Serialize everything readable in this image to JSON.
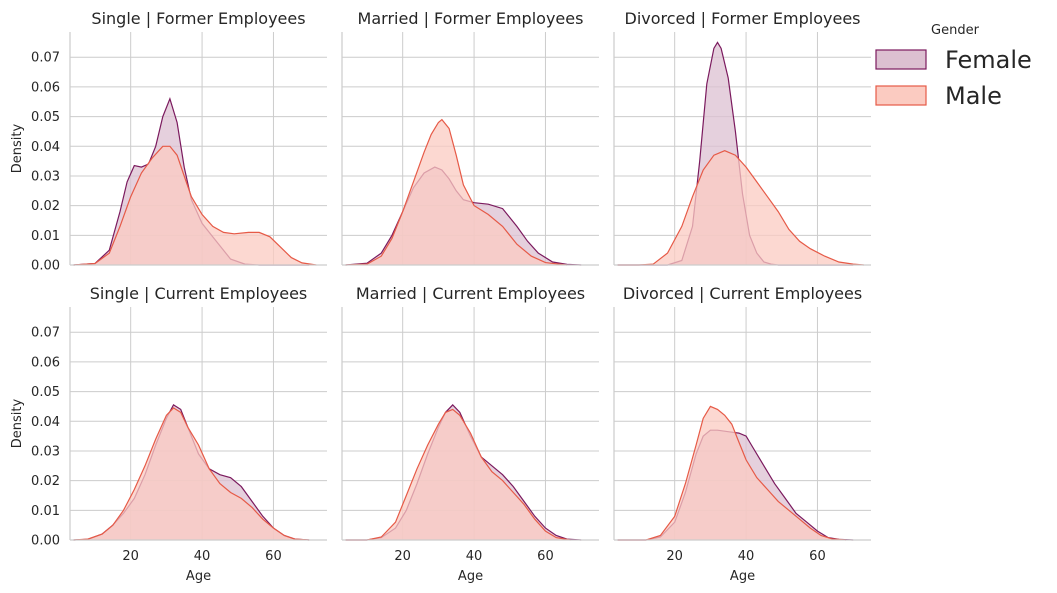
{
  "chart_data": {
    "type": "area",
    "kind": "kde-density facet grid",
    "xlabel": "Age",
    "ylabel": "Density",
    "xlim": [
      3,
      75
    ],
    "ylim": [
      0,
      0.0785
    ],
    "xticks": [
      20,
      40,
      60
    ],
    "yticks": [
      0.0,
      0.01,
      0.02,
      0.03,
      0.04,
      0.05,
      0.06,
      0.07
    ],
    "ytick_labels": [
      "0.00",
      "0.01",
      "0.02",
      "0.03",
      "0.04",
      "0.05",
      "0.06",
      "0.07"
    ],
    "grid": true,
    "legend": {
      "title": "Gender",
      "position": "top-right outside",
      "entries": [
        {
          "name": "Female",
          "fill": "#dcc0d1",
          "stroke": "#7b1a5e"
        },
        {
          "name": "Male",
          "fill": "#fbcbc1",
          "stroke": "#e65a47"
        }
      ]
    },
    "panels": [
      {
        "title": "Single | Former Employees",
        "series": [
          {
            "name": "Female",
            "x": [
              4,
              10,
              14,
              17,
              19,
              21,
              23,
              25,
              27,
              29,
              31,
              33,
              35,
              37,
              40,
              44,
              48,
              52,
              56,
              60,
              64,
              70
            ],
            "y": [
              0,
              0.0005,
              0.005,
              0.018,
              0.028,
              0.0335,
              0.033,
              0.034,
              0.04,
              0.05,
              0.056,
              0.048,
              0.033,
              0.022,
              0.014,
              0.008,
              0.002,
              0.0003,
              0,
              0,
              0,
              0
            ]
          },
          {
            "name": "Male",
            "x": [
              4,
              10,
              14,
              17,
              20,
              23,
              26,
              29,
              31,
              33,
              35,
              37,
              40,
              43,
              46,
              49,
              53,
              56,
              59,
              62,
              65,
              68,
              72
            ],
            "y": [
              0,
              0.0005,
              0.004,
              0.013,
              0.023,
              0.031,
              0.036,
              0.04,
              0.04,
              0.037,
              0.03,
              0.023,
              0.017,
              0.013,
              0.011,
              0.0105,
              0.011,
              0.011,
              0.0095,
              0.006,
              0.0025,
              0.0007,
              0
            ]
          }
        ]
      },
      {
        "title": "Married | Former Employees",
        "series": [
          {
            "name": "Female",
            "x": [
              4,
              10,
              14,
              17,
              20,
              23,
              26,
              29,
              31,
              33,
              35,
              37,
              40,
              44,
              48,
              52,
              55,
              58,
              62,
              66,
              70
            ],
            "y": [
              0,
              0.0006,
              0.004,
              0.01,
              0.018,
              0.026,
              0.031,
              0.033,
              0.032,
              0.029,
              0.025,
              0.022,
              0.021,
              0.0205,
              0.019,
              0.013,
              0.008,
              0.004,
              0.001,
              0.0002,
              0
            ]
          },
          {
            "name": "Male",
            "x": [
              4,
              10,
              14,
              17,
              20,
              23,
              26,
              28,
              30,
              31,
              33,
              35,
              37,
              40,
              44,
              48,
              52,
              56,
              60,
              66
            ],
            "y": [
              0,
              0.0003,
              0.003,
              0.009,
              0.018,
              0.028,
              0.038,
              0.044,
              0.048,
              0.049,
              0.046,
              0.037,
              0.027,
              0.02,
              0.017,
              0.013,
              0.007,
              0.003,
              0.0008,
              0
            ]
          }
        ]
      },
      {
        "title": "Divorced | Former Employees",
        "series": [
          {
            "name": "Female",
            "x": [
              4,
              14,
              18,
              22,
              25,
              27,
              29,
              31,
              32,
              33,
              35,
              37,
              39,
              41,
              43,
              45,
              47,
              49,
              52,
              56,
              62,
              70
            ],
            "y": [
              0,
              0,
              0,
              0.0015,
              0.013,
              0.035,
              0.061,
              0.073,
              0.075,
              0.073,
              0.063,
              0.045,
              0.024,
              0.01,
              0.004,
              0.001,
              0.0003,
              0,
              0,
              0,
              0,
              0
            ]
          },
          {
            "name": "Male",
            "x": [
              4,
              10,
              14,
              18,
              22,
              25,
              28,
              31,
              34,
              37,
              40,
              43,
              46,
              49,
              52,
              55,
              58,
              62,
              66,
              70,
              73
            ],
            "y": [
              0,
              0,
              0.0003,
              0.004,
              0.013,
              0.023,
              0.032,
              0.037,
              0.0385,
              0.037,
              0.033,
              0.028,
              0.023,
              0.018,
              0.012,
              0.008,
              0.0055,
              0.003,
              0.001,
              0.0003,
              0
            ]
          }
        ]
      },
      {
        "title": "Single | Current Employees",
        "series": [
          {
            "name": "Female",
            "x": [
              4,
              8,
              12,
              15,
              18,
              21,
              24,
              27,
              30,
              32,
              34,
              36,
              39,
              42,
              45,
              48,
              51,
              54,
              57,
              60,
              63,
              66,
              70
            ],
            "y": [
              0,
              0.0002,
              0.002,
              0.005,
              0.009,
              0.014,
              0.022,
              0.032,
              0.041,
              0.0455,
              0.044,
              0.038,
              0.029,
              0.024,
              0.022,
              0.021,
              0.018,
              0.013,
              0.008,
              0.004,
              0.0015,
              0.0003,
              0
            ]
          },
          {
            "name": "Male",
            "x": [
              4,
              8,
              12,
              15,
              18,
              21,
              24,
              27,
              30,
              32,
              34,
              36,
              39,
              42,
              45,
              48,
              51,
              54,
              57,
              60,
              63,
              66,
              70
            ],
            "y": [
              0,
              0.0003,
              0.002,
              0.005,
              0.01,
              0.017,
              0.025,
              0.034,
              0.042,
              0.0445,
              0.043,
              0.038,
              0.032,
              0.024,
              0.019,
              0.016,
              0.014,
              0.011,
              0.007,
              0.004,
              0.0015,
              0.0003,
              0
            ]
          }
        ]
      },
      {
        "title": "Married | Current Employees",
        "series": [
          {
            "name": "Female",
            "x": [
              4,
              10,
              14,
              18,
              21,
              24,
              27,
              30,
              32,
              34,
              36,
              39,
              42,
              45,
              48,
              51,
              54,
              57,
              60,
              63,
              66,
              70
            ],
            "y": [
              0,
              0,
              0.0008,
              0.004,
              0.01,
              0.019,
              0.029,
              0.038,
              0.043,
              0.0455,
              0.043,
              0.035,
              0.028,
              0.025,
              0.022,
              0.018,
              0.013,
              0.008,
              0.004,
              0.0015,
              0.0003,
              0
            ]
          },
          {
            "name": "Male",
            "x": [
              4,
              10,
              14,
              18,
              21,
              24,
              27,
              30,
              32,
              34,
              36,
              39,
              42,
              45,
              48,
              51,
              54,
              57,
              60,
              63,
              67
            ],
            "y": [
              0,
              0,
              0.001,
              0.006,
              0.015,
              0.024,
              0.032,
              0.039,
              0.043,
              0.044,
              0.042,
              0.036,
              0.028,
              0.023,
              0.02,
              0.016,
              0.012,
              0.007,
              0.003,
              0.0008,
              0
            ]
          }
        ]
      },
      {
        "title": "Divorced | Current Employees",
        "series": [
          {
            "name": "Female",
            "x": [
              4,
              12,
              16,
              20,
              23,
              26,
              28,
              30,
              32,
              35,
              38,
              40,
              42,
              45,
              48,
              51,
              54,
              57,
              60,
              63,
              66,
              70
            ],
            "y": [
              0,
              0,
              0.001,
              0.006,
              0.016,
              0.029,
              0.035,
              0.037,
              0.037,
              0.0365,
              0.036,
              0.035,
              0.031,
              0.025,
              0.019,
              0.014,
              0.009,
              0.006,
              0.003,
              0.0008,
              0.0002,
              0
            ]
          },
          {
            "name": "Male",
            "x": [
              4,
              12,
              16,
              20,
              23,
              26,
              28,
              30,
              32,
              34,
              36,
              38,
              40,
              43,
              46,
              49,
              52,
              55,
              58,
              61,
              64,
              68
            ],
            "y": [
              0,
              0,
              0.0015,
              0.008,
              0.019,
              0.032,
              0.041,
              0.045,
              0.044,
              0.042,
              0.039,
              0.033,
              0.027,
              0.021,
              0.017,
              0.013,
              0.01,
              0.007,
              0.004,
              0.0015,
              0.0004,
              0
            ]
          }
        ]
      }
    ]
  }
}
